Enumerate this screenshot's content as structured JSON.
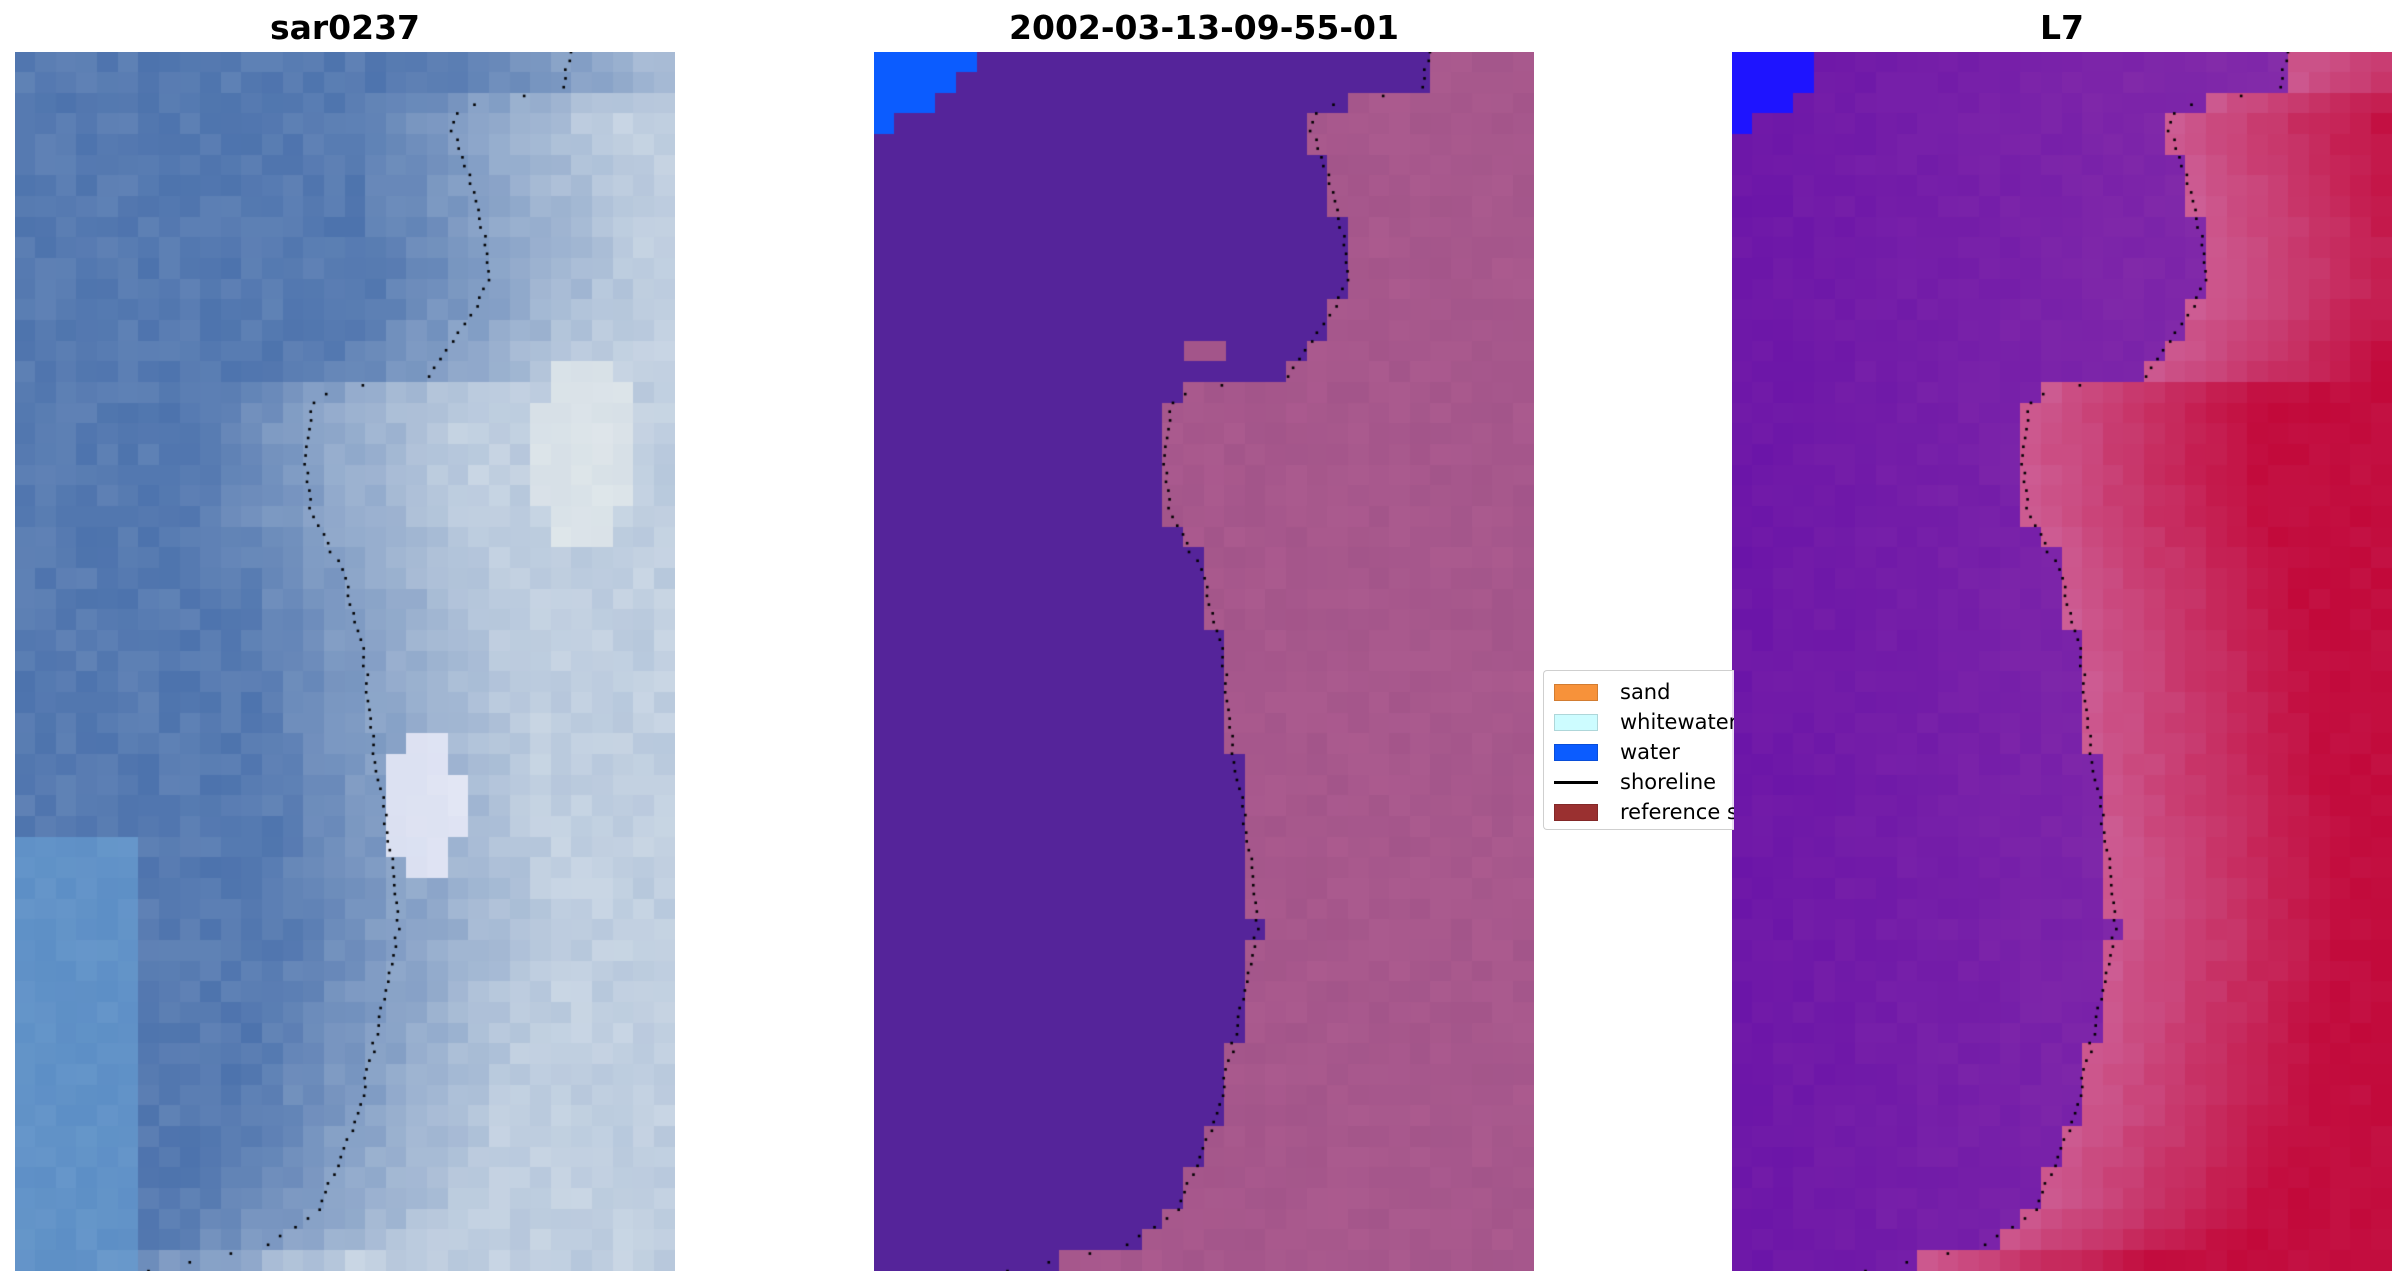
{
  "panels": [
    {
      "id": "p1",
      "title": "sar0237",
      "kind": "rgb-image"
    },
    {
      "id": "p2",
      "title": "2002-03-13-09-55-01",
      "kind": "classified-image"
    },
    {
      "id": "p3",
      "title": "L7",
      "kind": "index-image"
    }
  ],
  "legend": {
    "items": [
      {
        "label": "sand",
        "type": "patch",
        "color": "#f7923a"
      },
      {
        "label": "whitewater",
        "type": "patch",
        "color": "#cdfcff"
      },
      {
        "label": "water",
        "type": "patch",
        "color": "#0b5cff"
      },
      {
        "label": "shoreline",
        "type": "line",
        "color": "#000000"
      },
      {
        "label": "reference sl",
        "type": "patch",
        "color": "#9a3030"
      }
    ]
  },
  "colors": {
    "water_class": "#55249a",
    "land_overlay": "#a3558a",
    "water_corner": "#0b5cff",
    "sat_water": "#4d73ad",
    "sat_land": "#c9d6e4",
    "index_low": "#6a14a8",
    "index_high": "#c2093a"
  }
}
